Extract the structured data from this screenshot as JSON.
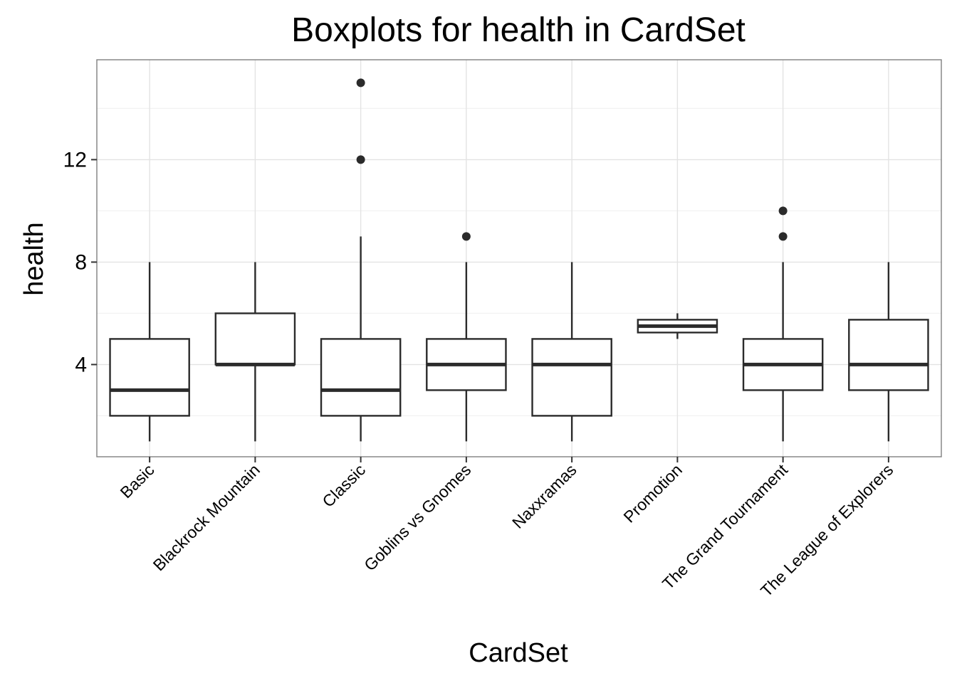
{
  "chart_data": {
    "type": "boxplot",
    "title": "Boxplots for health in CardSet",
    "xlabel": "CardSet",
    "ylabel": "health",
    "ylim": [
      0.4,
      15.9
    ],
    "yticks": [
      4,
      8,
      12
    ],
    "grid": true,
    "categories": [
      "Basic",
      "Blackrock Mountain",
      "Classic",
      "Goblins vs Gnomes",
      "Naxxramas",
      "Promotion",
      "The Grand Tournament",
      "The League of Explorers"
    ],
    "boxes": [
      {
        "category": "Basic",
        "whisker_low": 1,
        "q1": 2,
        "median": 3,
        "q3": 5,
        "whisker_high": 8,
        "outliers": []
      },
      {
        "category": "Blackrock Mountain",
        "whisker_low": 1,
        "q1": 4,
        "median": 4,
        "q3": 6,
        "whisker_high": 8,
        "outliers": []
      },
      {
        "category": "Classic",
        "whisker_low": 1,
        "q1": 2,
        "median": 3,
        "q3": 5,
        "whisker_high": 9,
        "outliers": [
          12,
          15
        ]
      },
      {
        "category": "Goblins vs Gnomes",
        "whisker_low": 1,
        "q1": 3,
        "median": 4,
        "q3": 5,
        "whisker_high": 8,
        "outliers": [
          9
        ]
      },
      {
        "category": "Naxxramas",
        "whisker_low": 1,
        "q1": 2,
        "median": 4,
        "q3": 5,
        "whisker_high": 8,
        "outliers": []
      },
      {
        "category": "Promotion",
        "whisker_low": 5,
        "q1": 5.25,
        "median": 5.5,
        "q3": 5.75,
        "whisker_high": 6,
        "outliers": []
      },
      {
        "category": "The Grand Tournament",
        "whisker_low": 1,
        "q1": 3,
        "median": 4,
        "q3": 5,
        "whisker_high": 8,
        "outliers": [
          9,
          10
        ]
      },
      {
        "category": "The League of Explorers",
        "whisker_low": 1,
        "q1": 3,
        "median": 4,
        "q3": 5.75,
        "whisker_high": 8,
        "outliers": []
      }
    ],
    "colors": {
      "panel_border": "#7f7f7f",
      "grid_major": "#e3e3e3",
      "grid_minor": "#f2f2f2",
      "box_stroke": "#2b2b2b",
      "outlier_fill": "#2b2b2b"
    }
  }
}
